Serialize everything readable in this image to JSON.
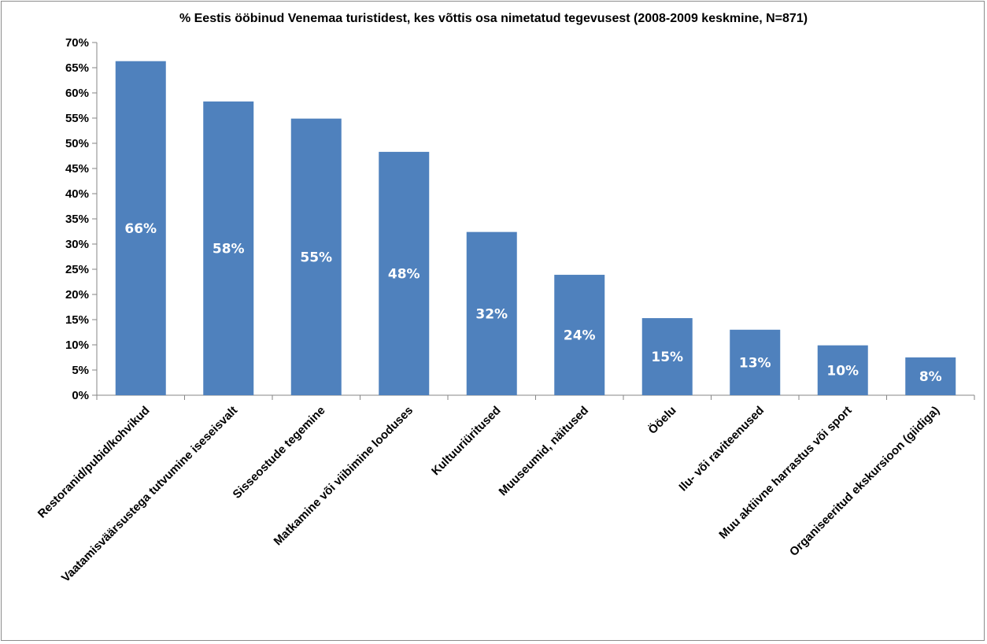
{
  "chart_data": {
    "type": "bar",
    "title": "% Eestis ööbinud Venemaa turistidest, kes võttis osa nimetatud tegevusest (2008-2009 keskmine, N=871)",
    "xlabel": "",
    "ylabel": "",
    "ylim": [
      0,
      70
    ],
    "grid": false,
    "legend": "none",
    "bar_color": "#4F81BD",
    "y_ticks": [
      "0%",
      "5%",
      "10%",
      "15%",
      "20%",
      "25%",
      "30%",
      "35%",
      "40%",
      "45%",
      "50%",
      "55%",
      "60%",
      "65%",
      "70%"
    ],
    "categories": [
      "Restoranid/pubid/kohvikud",
      "Vaatamisväärsustega tutvumine iseseisvalt",
      "Sisseostude tegemine",
      "Matkamine või viibimine looduses",
      "Kultuuriüritused",
      "Muuseumid, näitused",
      "Ööelu",
      "Ilu- või raviteenused",
      "Muu aktiivne harrastus või sport",
      "Organiseeritud ekskursioon (giidiga)"
    ],
    "values": [
      66.3,
      58.3,
      54.9,
      48.3,
      32.4,
      23.9,
      15.3,
      13.0,
      9.9,
      7.5
    ],
    "data_labels": [
      "66%",
      "58%",
      "55%",
      "48%",
      "32%",
      "24%",
      "15%",
      "13%",
      "10%",
      "8%"
    ]
  }
}
